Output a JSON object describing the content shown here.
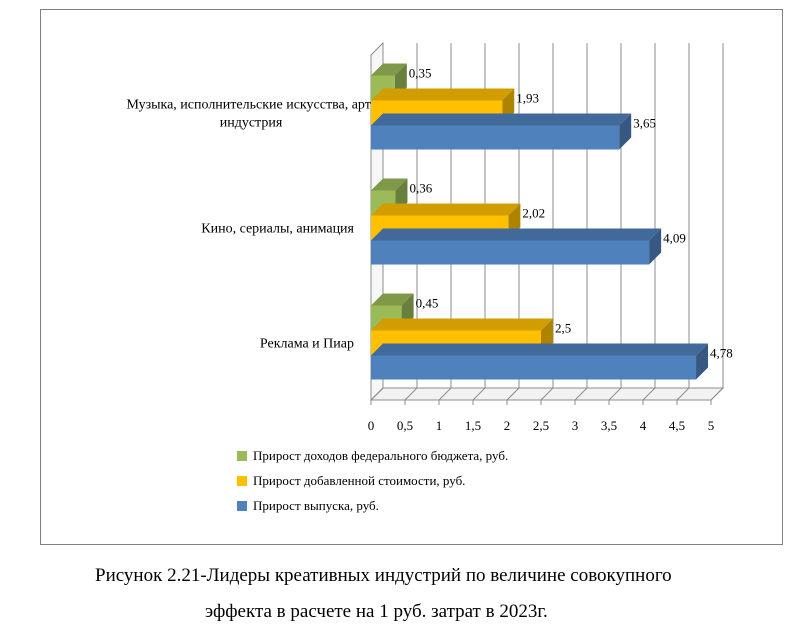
{
  "chart_data": {
    "type": "bar",
    "orientation": "horizontal",
    "style": "3d",
    "categories": [
      "Музыка, исполнительские искусства, арт-индустрия",
      "Кино, сериалы, анимация",
      "Реклама и Пиар"
    ],
    "category_label_lines": [
      [
        "Музыка, исполнительские искусства, арт-",
        "индустрия"
      ],
      [
        "Кино, сериалы, анимация"
      ],
      [
        "Реклама и Пиар"
      ]
    ],
    "series": [
      {
        "name": "Прирост доходов федерального бюджета, руб.",
        "color": "#9bbb59",
        "values": [
          0.35,
          0.36,
          0.45
        ],
        "value_labels": [
          "0,35",
          "0,36",
          "0,45"
        ]
      },
      {
        "name": "Прирост добавленной стоимости, руб.",
        "color": "#ffc000",
        "values": [
          1.93,
          2.02,
          2.5
        ],
        "value_labels": [
          "1,93",
          "2,02",
          "2,5"
        ]
      },
      {
        "name": "Прирост выпуска, руб.",
        "color": "#4f81bd",
        "values": [
          3.65,
          4.09,
          4.78
        ],
        "value_labels": [
          "3,65",
          "4,09",
          "4,78"
        ]
      }
    ],
    "xlim": [
      0,
      5
    ],
    "xticks": [
      0,
      0.5,
      1,
      1.5,
      2,
      2.5,
      3,
      3.5,
      4,
      4.5,
      5
    ],
    "xtick_labels": [
      "0",
      "0,5",
      "1",
      "1,5",
      "2",
      "2,5",
      "3",
      "3,5",
      "4",
      "4,5",
      "5"
    ],
    "grid": true,
    "legend_position": "bottom"
  },
  "caption": {
    "line1": "Рисунок 2.21-Лидеры креативных индустрий по величине совокупного",
    "line2": "эффекта в расчете на 1 руб. затрат в 2023г."
  }
}
